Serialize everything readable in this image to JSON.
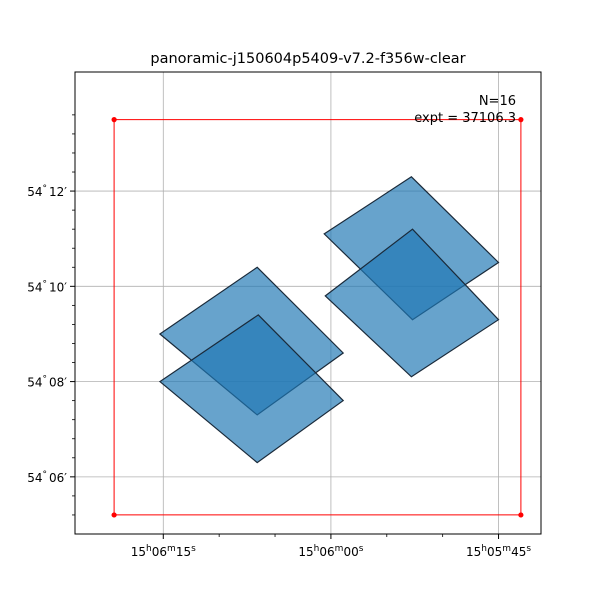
{
  "chart_data": {
    "type": "footprint",
    "title": "panoramic-j150604p5409-v7.2-f356w-clear",
    "annotation": {
      "lines": [
        "N=16",
        "expt = 37106.3"
      ],
      "placement": "top-right"
    },
    "grid": true,
    "x_axis": {
      "label": "",
      "units": "RA (seconds of 15h)",
      "ticks": [
        {
          "value": 375,
          "label_h": "15",
          "label_m": "06",
          "label_s": "15"
        },
        {
          "value": 360,
          "label_h": "15",
          "label_m": "06",
          "label_s": "00"
        },
        {
          "value": 345,
          "label_h": "15",
          "label_m": "05",
          "label_s": "45"
        }
      ],
      "minor_ticks": [
        370,
        365,
        355,
        350
      ]
    },
    "y_axis": {
      "label": "",
      "units": "Dec (arcmin above 54°)",
      "ticks": [
        {
          "value": 12,
          "label_deg": "54",
          "label_min": "12"
        },
        {
          "value": 10,
          "label_deg": "54",
          "label_min": "10"
        },
        {
          "value": 8,
          "label_deg": "54",
          "label_min": "08"
        },
        {
          "value": 6,
          "label_deg": "54",
          "label_min": "06"
        }
      ],
      "minor_ticks": [
        13.6,
        13.2,
        12.8,
        12.4,
        11.6,
        11.2,
        10.8,
        10.4,
        9.6,
        9.2,
        8.8,
        8.4,
        7.6,
        7.2,
        6.8,
        6.4,
        5.6,
        5.2
      ]
    },
    "xlim": [
      382.9,
      341.2
    ],
    "ylim": [
      4.8,
      14.5
    ],
    "fill_color": "#1f77b4",
    "edge_color": "#1a2a3a",
    "bounding_box": {
      "color": "#ff0000",
      "corners": [
        [
          379.4,
          13.5
        ],
        [
          343.0,
          13.5
        ],
        [
          343.0,
          5.2
        ],
        [
          379.4,
          5.2
        ]
      ]
    },
    "footprints": [
      {
        "name": "footprint-1",
        "corners": [
          [
            360.6,
            11.1
          ],
          [
            352.8,
            12.3
          ],
          [
            345.0,
            10.5
          ],
          [
            352.7,
            9.3
          ]
        ]
      },
      {
        "name": "footprint-2",
        "corners": [
          [
            360.5,
            9.8
          ],
          [
            352.7,
            11.2
          ],
          [
            345.0,
            9.3
          ],
          [
            352.8,
            8.1
          ]
        ]
      },
      {
        "name": "footprint-3",
        "corners": [
          [
            375.3,
            9.0
          ],
          [
            366.6,
            10.4
          ],
          [
            358.9,
            8.6
          ],
          [
            366.6,
            7.3
          ]
        ]
      },
      {
        "name": "footprint-4",
        "corners": [
          [
            375.3,
            8.0
          ],
          [
            366.5,
            9.4
          ],
          [
            358.9,
            7.6
          ],
          [
            366.6,
            6.3
          ]
        ]
      }
    ]
  }
}
